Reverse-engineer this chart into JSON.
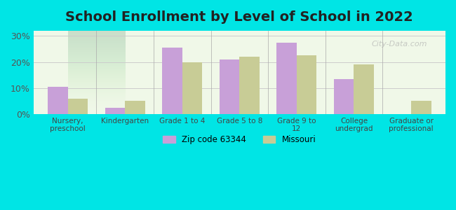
{
  "title": "School Enrollment by Level of School in 2022",
  "categories": [
    "Nursery,\npreschool",
    "Kindergarten",
    "Grade 1 to 4",
    "Grade 5 to 8",
    "Grade 9 to\n12",
    "College\nundergrad",
    "Graduate or\nprofessional"
  ],
  "zip_values": [
    10.5,
    2.5,
    25.5,
    21.0,
    27.5,
    13.5,
    0.0
  ],
  "missouri_values": [
    6.0,
    5.0,
    20.0,
    22.0,
    22.5,
    19.0,
    5.0
  ],
  "zip_color": "#c8a0d8",
  "missouri_color": "#c8cc96",
  "background_outer": "#00e5e5",
  "background_inner": "#f0f8e8",
  "ylim": [
    0,
    32
  ],
  "yticks": [
    0,
    10,
    20,
    30
  ],
  "ytick_labels": [
    "0%",
    "10%",
    "20%",
    "30%"
  ],
  "legend_labels": [
    "Zip code 63344",
    "Missouri"
  ],
  "bar_width": 0.35,
  "title_fontsize": 14,
  "watermark": "City-Data.com"
}
